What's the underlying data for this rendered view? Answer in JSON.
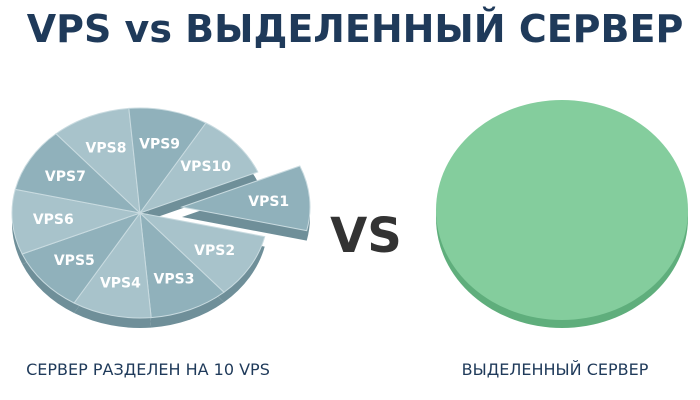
{
  "title": "VPS vs ВЫДЕЛЕННЫЙ СЕРВЕР",
  "left": {
    "slices": [
      "VPS1",
      "VPS2",
      "VPS3",
      "VPS4",
      "VPS5",
      "VPS6",
      "VPS7",
      "VPS8",
      "VPS9",
      "VPS10"
    ],
    "caption": "СЕРВЕР РАЗДЕЛЕН НА 10 VPS"
  },
  "vs": "VS",
  "right": {
    "caption": "ВЫДЕЛЕННЫЙ СЕРВЕР"
  }
}
